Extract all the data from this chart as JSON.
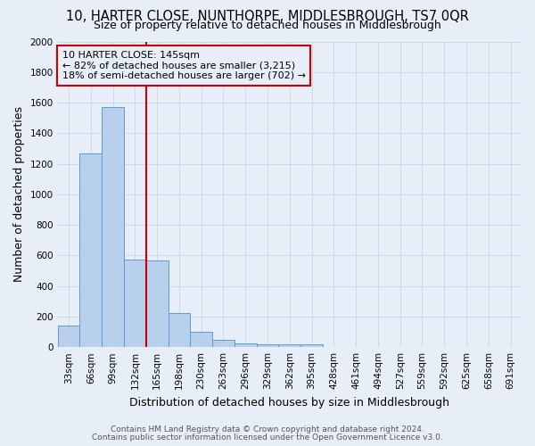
{
  "title": "10, HARTER CLOSE, NUNTHORPE, MIDDLESBROUGH, TS7 0QR",
  "subtitle": "Size of property relative to detached houses in Middlesbrough",
  "xlabel": "Distribution of detached houses by size in Middlesbrough",
  "ylabel": "Number of detached properties",
  "footnote1": "Contains HM Land Registry data © Crown copyright and database right 2024.",
  "footnote2": "Contains public sector information licensed under the Open Government Licence v3.0.",
  "bar_labels": [
    "33sqm",
    "66sqm",
    "99sqm",
    "132sqm",
    "165sqm",
    "198sqm",
    "230sqm",
    "263sqm",
    "296sqm",
    "329sqm",
    "362sqm",
    "395sqm",
    "428sqm",
    "461sqm",
    "494sqm",
    "527sqm",
    "559sqm",
    "592sqm",
    "625sqm",
    "658sqm",
    "691sqm"
  ],
  "bar_values": [
    140,
    1270,
    1570,
    575,
    570,
    220,
    100,
    50,
    25,
    20,
    20,
    20,
    0,
    0,
    0,
    0,
    0,
    0,
    0,
    0,
    0
  ],
  "bar_color": "#b8d0eb",
  "bar_edge_color": "#5b9bd5",
  "vline_x": 3.5,
  "vline_color": "#cc0000",
  "annotation_text": "10 HARTER CLOSE: 145sqm\n← 82% of detached houses are smaller (3,215)\n18% of semi-detached houses are larger (702) →",
  "annotation_box_edge": "#cc0000",
  "ylim": [
    0,
    2000
  ],
  "yticks": [
    0,
    200,
    400,
    600,
    800,
    1000,
    1200,
    1400,
    1600,
    1800,
    2000
  ],
  "bg_color": "#e8eef8",
  "plot_bg_color": "#e8eef8",
  "title_fontsize": 10.5,
  "subtitle_fontsize": 9,
  "axis_label_fontsize": 9,
  "tick_fontsize": 7.5,
  "annotation_fontsize": 8,
  "footnote_fontsize": 6.5,
  "footnote_color": "#555555"
}
